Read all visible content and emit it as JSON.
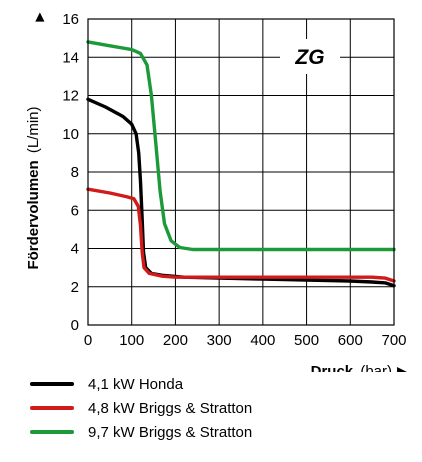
{
  "chart_data": {
    "type": "line",
    "title": "",
    "badge": "ZG",
    "xlabel_bold": "Druck",
    "xlabel_unit": "(bar)",
    "xlabel_arrow": "▶",
    "ylabel_bold": "Fördervolumen",
    "ylabel_unit": "(L/min)",
    "ylabel_arrow": "▶",
    "xlim": [
      0,
      700
    ],
    "ylim": [
      0,
      16
    ],
    "xticks": [
      0,
      100,
      200,
      300,
      400,
      500,
      600,
      700
    ],
    "yticks": [
      0,
      2,
      4,
      6,
      8,
      10,
      12,
      14,
      16
    ],
    "grid": true,
    "legend_position": "bottom",
    "series": [
      {
        "name": "4,1 kW Honda",
        "color": "#000000",
        "points": [
          [
            0,
            11.8
          ],
          [
            40,
            11.4
          ],
          [
            80,
            10.9
          ],
          [
            100,
            10.5
          ],
          [
            110,
            10.0
          ],
          [
            116,
            9.0
          ],
          [
            120,
            7.5
          ],
          [
            124,
            5.5
          ],
          [
            127,
            3.8
          ],
          [
            132,
            3.0
          ],
          [
            145,
            2.7
          ],
          [
            170,
            2.6
          ],
          [
            220,
            2.5
          ],
          [
            300,
            2.45
          ],
          [
            400,
            2.4
          ],
          [
            500,
            2.35
          ],
          [
            600,
            2.3
          ],
          [
            650,
            2.25
          ],
          [
            680,
            2.2
          ],
          [
            700,
            2.05
          ]
        ]
      },
      {
        "name": "4,8 kW Briggs & Stratton",
        "color": "#d11a1a",
        "points": [
          [
            0,
            7.1
          ],
          [
            50,
            6.9
          ],
          [
            90,
            6.7
          ],
          [
            105,
            6.6
          ],
          [
            115,
            6.2
          ],
          [
            120,
            5.2
          ],
          [
            124,
            3.8
          ],
          [
            128,
            3.0
          ],
          [
            140,
            2.7
          ],
          [
            170,
            2.55
          ],
          [
            200,
            2.5
          ],
          [
            300,
            2.5
          ],
          [
            400,
            2.5
          ],
          [
            500,
            2.5
          ],
          [
            600,
            2.5
          ],
          [
            650,
            2.5
          ],
          [
            680,
            2.45
          ],
          [
            700,
            2.3
          ]
        ]
      },
      {
        "name": "9,7 kW Briggs & Stratton",
        "color": "#1c9a3a",
        "points": [
          [
            0,
            14.8
          ],
          [
            50,
            14.6
          ],
          [
            100,
            14.4
          ],
          [
            120,
            14.2
          ],
          [
            135,
            13.6
          ],
          [
            145,
            12.0
          ],
          [
            155,
            9.5
          ],
          [
            165,
            7.0
          ],
          [
            175,
            5.3
          ],
          [
            190,
            4.4
          ],
          [
            210,
            4.05
          ],
          [
            240,
            3.95
          ],
          [
            300,
            3.95
          ],
          [
            400,
            3.95
          ],
          [
            500,
            3.95
          ],
          [
            600,
            3.95
          ],
          [
            700,
            3.95
          ]
        ]
      }
    ]
  }
}
